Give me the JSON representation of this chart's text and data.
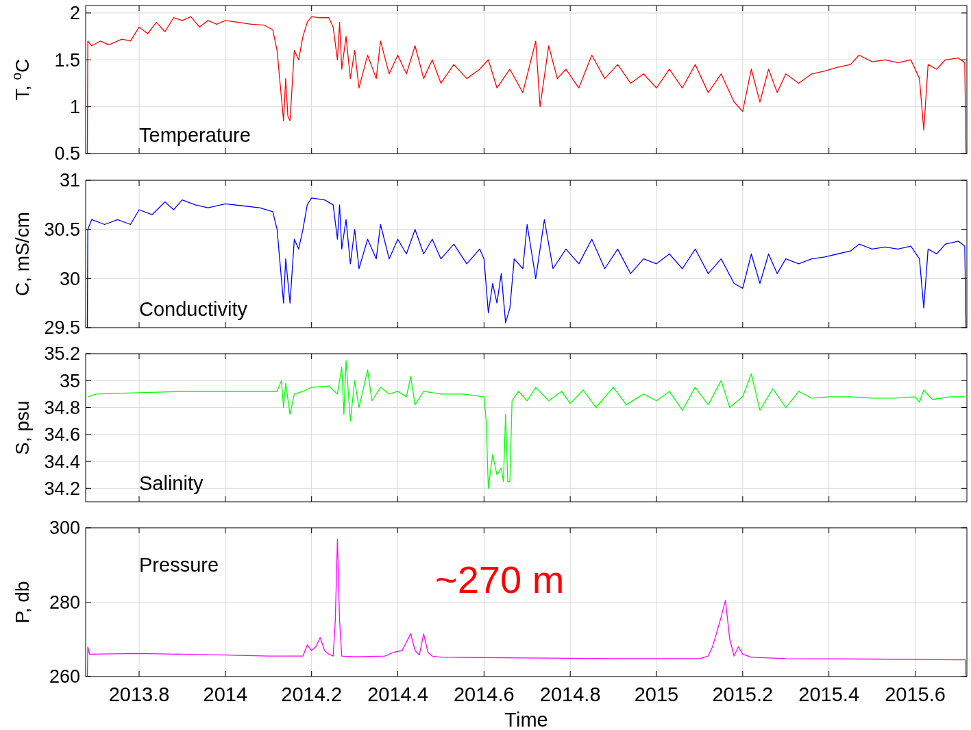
{
  "chart_data": [
    {
      "type": "line",
      "ylabel": "T, $^{o}$C",
      "annotations": [
        "Temperature"
      ],
      "grid": true,
      "tick_labels": "y",
      "xlim": [
        2013.676,
        2015.72
      ],
      "xticks": [
        2013.8,
        2014,
        2014.2,
        2014.4,
        2014.6,
        2014.8,
        2015,
        2015.2,
        2015.4,
        2015.6
      ],
      "ylim": [
        0.5,
        2.08
      ],
      "yticks": [
        0.5,
        1,
        1.5,
        2
      ],
      "x": [
        2013.68,
        2013.681,
        2013.69,
        2013.71,
        2013.73,
        2013.76,
        2013.78,
        2013.8,
        2013.82,
        2013.84,
        2013.86,
        2013.88,
        2013.9,
        2013.92,
        2013.94,
        2013.96,
        2013.98,
        2014.0,
        2014.03,
        2014.06,
        2014.09,
        2014.11,
        2014.12,
        2014.13,
        2014.135,
        2014.14,
        2014.145,
        2014.15,
        2014.16,
        2014.17,
        2014.18,
        2014.19,
        2014.2,
        2014.22,
        2014.24,
        2014.25,
        2014.26,
        2014.265,
        2014.27,
        2014.28,
        2014.29,
        2014.3,
        2014.31,
        2014.33,
        2014.35,
        2014.36,
        2014.38,
        2014.4,
        2014.42,
        2014.44,
        2014.46,
        2014.48,
        2014.5,
        2014.53,
        2014.56,
        2014.59,
        2014.61,
        2014.63,
        2014.66,
        2014.69,
        2014.72,
        2014.73,
        2014.75,
        2014.77,
        2014.79,
        2014.82,
        2014.85,
        2014.88,
        2014.91,
        2014.94,
        2014.97,
        2015.0,
        2015.03,
        2015.06,
        2015.09,
        2015.12,
        2015.15,
        2015.18,
        2015.2,
        2015.22,
        2015.24,
        2015.26,
        2015.28,
        2015.3,
        2015.33,
        2015.36,
        2015.39,
        2015.42,
        2015.45,
        2015.47,
        2015.5,
        2015.53,
        2015.56,
        2015.59,
        2015.61,
        2015.62,
        2015.63,
        2015.65,
        2015.67,
        2015.7,
        2015.715,
        2015.718
      ],
      "series": [
        {
          "color": "#ff0000",
          "values": [
            0.5,
            1.7,
            1.65,
            1.7,
            1.66,
            1.72,
            1.7,
            1.85,
            1.78,
            1.9,
            1.8,
            1.95,
            1.92,
            1.96,
            1.85,
            1.92,
            1.88,
            1.92,
            1.9,
            1.88,
            1.87,
            1.82,
            1.6,
            1.1,
            0.85,
            1.3,
            0.9,
            0.85,
            1.6,
            1.5,
            1.75,
            1.9,
            1.96,
            1.95,
            1.95,
            1.85,
            1.5,
            1.9,
            1.4,
            1.75,
            1.3,
            1.6,
            1.2,
            1.55,
            1.3,
            1.7,
            1.35,
            1.55,
            1.35,
            1.65,
            1.3,
            1.5,
            1.25,
            1.45,
            1.3,
            1.4,
            1.5,
            1.2,
            1.4,
            1.15,
            1.7,
            1.0,
            1.65,
            1.3,
            1.4,
            1.2,
            1.55,
            1.3,
            1.45,
            1.25,
            1.35,
            1.2,
            1.4,
            1.2,
            1.45,
            1.15,
            1.35,
            1.05,
            0.95,
            1.4,
            1.05,
            1.4,
            1.15,
            1.35,
            1.25,
            1.35,
            1.38,
            1.42,
            1.45,
            1.55,
            1.48,
            1.5,
            1.47,
            1.5,
            1.3,
            0.75,
            1.45,
            1.4,
            1.5,
            1.52,
            1.47,
            0.5
          ]
        }
      ]
    },
    {
      "type": "line",
      "ylabel": "C, mS/cm",
      "annotations": [
        "Conductivity"
      ],
      "grid": true,
      "tick_labels": "y",
      "xlim": [
        2013.676,
        2015.72
      ],
      "xticks": [
        2013.8,
        2014,
        2014.2,
        2014.4,
        2014.6,
        2014.8,
        2015,
        2015.2,
        2015.4,
        2015.6
      ],
      "ylim": [
        29.5,
        31
      ],
      "yticks": [
        29.5,
        30,
        30.5,
        31
      ],
      "x": [
        2013.68,
        2013.681,
        2013.69,
        2013.72,
        2013.75,
        2013.78,
        2013.8,
        2013.83,
        2013.86,
        2013.88,
        2013.9,
        2013.93,
        2013.96,
        2014.0,
        2014.04,
        2014.08,
        2014.11,
        2014.12,
        2014.13,
        2014.135,
        2014.14,
        2014.15,
        2014.16,
        2014.17,
        2014.18,
        2014.19,
        2014.2,
        2014.23,
        2014.25,
        2014.26,
        2014.265,
        2014.27,
        2014.28,
        2014.29,
        2014.3,
        2014.31,
        2014.33,
        2014.35,
        2014.36,
        2014.38,
        2014.4,
        2014.42,
        2014.44,
        2014.46,
        2014.48,
        2014.5,
        2014.53,
        2014.56,
        2014.59,
        2014.6,
        2014.61,
        2014.62,
        2014.63,
        2014.64,
        2014.65,
        2014.66,
        2014.67,
        2014.69,
        2014.7,
        2014.72,
        2014.74,
        2014.76,
        2014.79,
        2014.82,
        2014.85,
        2014.88,
        2014.91,
        2014.94,
        2014.97,
        2015.0,
        2015.03,
        2015.06,
        2015.09,
        2015.12,
        2015.15,
        2015.18,
        2015.2,
        2015.22,
        2015.24,
        2015.26,
        2015.28,
        2015.3,
        2015.33,
        2015.36,
        2015.39,
        2015.42,
        2015.45,
        2015.47,
        2015.5,
        2015.53,
        2015.56,
        2015.59,
        2015.61,
        2015.62,
        2015.63,
        2015.65,
        2015.67,
        2015.7,
        2015.715,
        2015.718
      ],
      "series": [
        {
          "color": "#0000ff",
          "values": [
            29.5,
            30.5,
            30.6,
            30.55,
            30.6,
            30.55,
            30.7,
            30.65,
            30.78,
            30.7,
            30.8,
            30.75,
            30.72,
            30.76,
            30.74,
            30.72,
            30.68,
            30.5,
            30.0,
            29.75,
            30.2,
            29.75,
            30.4,
            30.3,
            30.5,
            30.75,
            30.82,
            30.8,
            30.75,
            30.4,
            30.75,
            30.3,
            30.6,
            30.15,
            30.5,
            30.1,
            30.4,
            30.2,
            30.55,
            30.2,
            30.4,
            30.25,
            30.5,
            30.25,
            30.4,
            30.2,
            30.35,
            30.15,
            30.3,
            30.2,
            29.65,
            29.95,
            29.75,
            30.05,
            29.55,
            29.7,
            30.2,
            30.1,
            30.55,
            30.0,
            30.6,
            30.1,
            30.3,
            30.15,
            30.4,
            30.1,
            30.3,
            30.05,
            30.2,
            30.15,
            30.25,
            30.1,
            30.3,
            30.05,
            30.2,
            29.95,
            29.9,
            30.25,
            29.95,
            30.25,
            30.05,
            30.2,
            30.15,
            30.2,
            30.22,
            30.25,
            30.28,
            30.35,
            30.3,
            30.32,
            30.3,
            30.33,
            30.2,
            29.7,
            30.3,
            30.25,
            30.35,
            30.38,
            30.33,
            29.5
          ]
        }
      ]
    },
    {
      "type": "line",
      "ylabel": "S, psu",
      "annotations": [
        "Salinity"
      ],
      "grid": true,
      "tick_labels": "y",
      "xlim": [
        2013.676,
        2015.72
      ],
      "xticks": [
        2013.8,
        2014,
        2014.2,
        2014.4,
        2014.6,
        2014.8,
        2015,
        2015.2,
        2015.4,
        2015.6
      ],
      "ylim": [
        34.1,
        35.2
      ],
      "yticks": [
        34.2,
        34.4,
        34.6,
        34.8,
        35,
        35.2
      ],
      "x": [
        2013.681,
        2013.7,
        2013.8,
        2013.9,
        2014.0,
        2014.1,
        2014.12,
        2014.13,
        2014.135,
        2014.14,
        2014.15,
        2014.16,
        2014.18,
        2014.2,
        2014.24,
        2014.26,
        2014.27,
        2014.275,
        2014.28,
        2014.29,
        2014.3,
        2014.31,
        2014.33,
        2014.34,
        2014.36,
        2014.38,
        2014.4,
        2014.42,
        2014.43,
        2014.44,
        2014.46,
        2014.5,
        2014.55,
        2014.6,
        2014.605,
        2014.61,
        2014.62,
        2014.63,
        2014.64,
        2014.645,
        2014.65,
        2014.655,
        2014.66,
        2014.665,
        2014.68,
        2014.7,
        2014.72,
        2014.75,
        2014.78,
        2014.8,
        2014.83,
        2014.86,
        2014.9,
        2014.93,
        2014.97,
        2015.0,
        2015.03,
        2015.06,
        2015.09,
        2015.12,
        2015.15,
        2015.17,
        2015.2,
        2015.22,
        2015.24,
        2015.27,
        2015.3,
        2015.33,
        2015.36,
        2015.4,
        2015.45,
        2015.5,
        2015.55,
        2015.6,
        2015.61,
        2015.62,
        2015.64,
        2015.68,
        2015.715
      ],
      "series": [
        {
          "color": "#00ff00",
          "values": [
            34.88,
            34.9,
            34.91,
            34.92,
            34.92,
            34.92,
            34.92,
            35.0,
            34.8,
            34.98,
            34.75,
            34.9,
            34.92,
            34.95,
            34.96,
            34.9,
            35.1,
            34.75,
            35.15,
            34.7,
            35.0,
            34.8,
            35.08,
            34.85,
            34.95,
            34.9,
            34.92,
            34.88,
            35.03,
            34.82,
            34.92,
            34.9,
            34.9,
            34.88,
            34.7,
            34.2,
            34.45,
            34.3,
            34.35,
            34.25,
            34.75,
            34.25,
            34.25,
            34.85,
            34.92,
            34.85,
            34.95,
            34.85,
            34.92,
            34.83,
            34.93,
            34.8,
            34.95,
            34.82,
            34.9,
            34.85,
            34.92,
            34.78,
            34.95,
            34.82,
            35.0,
            34.8,
            34.88,
            35.05,
            34.78,
            34.94,
            34.8,
            34.92,
            34.87,
            34.88,
            34.88,
            34.87,
            34.87,
            34.88,
            34.84,
            34.93,
            34.86,
            34.88,
            34.88
          ]
        }
      ]
    },
    {
      "type": "line",
      "ylabel": "P, db",
      "xlabel": "Time",
      "annotations": [
        "Pressure",
        "~270 m"
      ],
      "grid": true,
      "xlim": [
        2013.676,
        2015.72
      ],
      "xticks": [
        2013.8,
        2014,
        2014.2,
        2014.4,
        2014.6,
        2014.8,
        2015,
        2015.2,
        2015.4,
        2015.6
      ],
      "ylim": [
        260,
        300
      ],
      "yticks": [
        260,
        280,
        300
      ],
      "x": [
        2013.68,
        2013.681,
        2013.685,
        2013.8,
        2013.9,
        2014.0,
        2014.1,
        2014.18,
        2014.19,
        2014.2,
        2014.21,
        2014.22,
        2014.23,
        2014.24,
        2014.25,
        2014.255,
        2014.26,
        2014.265,
        2014.27,
        2014.3,
        2014.37,
        2014.39,
        2014.41,
        2014.43,
        2014.44,
        2014.45,
        2014.46,
        2014.47,
        2014.48,
        2014.5,
        2014.7,
        2014.9,
        2015.1,
        2015.12,
        2015.13,
        2015.14,
        2015.15,
        2015.16,
        2015.17,
        2015.18,
        2015.19,
        2015.2,
        2015.22,
        2015.3,
        2015.5,
        2015.7,
        2015.716,
        2015.718
      ],
      "series": [
        {
          "color": "#ff00ff",
          "values": [
            260,
            268,
            266,
            266.2,
            266,
            265.8,
            265.5,
            265.5,
            268.5,
            267,
            268,
            270.5,
            267,
            266,
            265.5,
            275,
            297,
            275,
            265.5,
            265.3,
            265.5,
            266.5,
            267,
            271.5,
            267,
            265.8,
            271.5,
            266.5,
            265.5,
            265.2,
            265,
            264.8,
            264.8,
            265.5,
            268,
            272,
            276,
            280.5,
            270,
            265.5,
            268,
            266,
            265.2,
            264.8,
            264.7,
            264.5,
            264.5,
            260
          ]
        }
      ]
    }
  ]
}
